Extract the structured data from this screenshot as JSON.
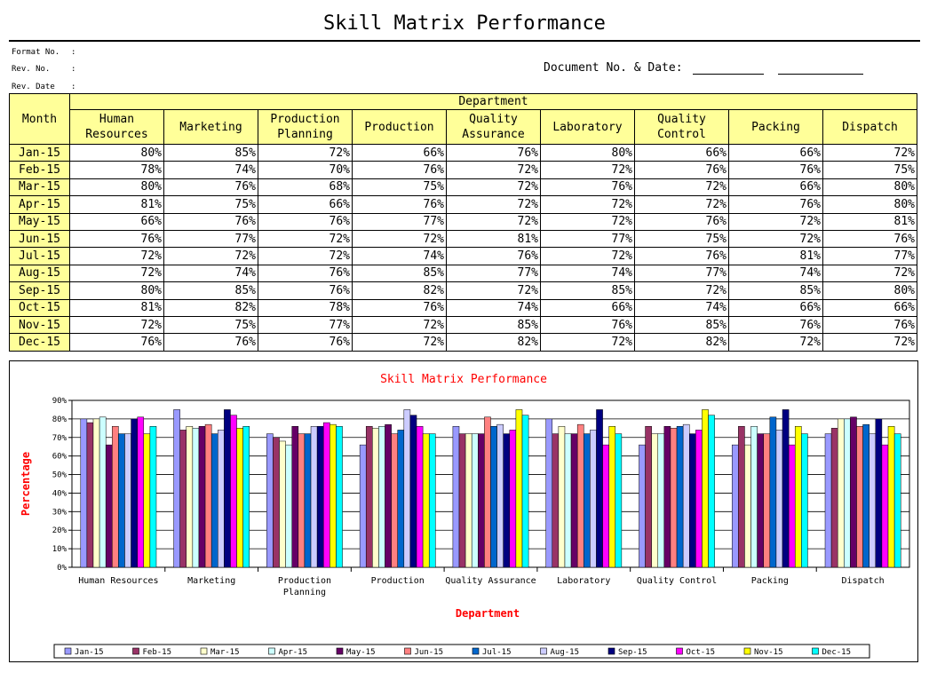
{
  "title": "Skill Matrix Performance",
  "meta": {
    "format_no": "Format No.",
    "rev_no": "Rev. No.",
    "rev_date": "Rev. Date",
    "colon": ":",
    "doc_label": "Document No. & Date:"
  },
  "table": {
    "month_header": "Month",
    "department_header": "Department",
    "columns": [
      [
        "Human",
        "Resources"
      ],
      [
        "Marketing",
        ""
      ],
      [
        "Production",
        "Planning"
      ],
      [
        "Production",
        ""
      ],
      [
        "Quality",
        "Assurance"
      ],
      [
        "Laboratory",
        ""
      ],
      [
        "Quality",
        "Control"
      ],
      [
        "Packing",
        ""
      ],
      [
        "Dispatch",
        ""
      ]
    ]
  },
  "chart_data": {
    "type": "bar",
    "title": "Skill Matrix Performance",
    "xlabel": "Department",
    "ylabel": "Percentage",
    "ylim": [
      0,
      90
    ],
    "yticks": [
      "0%",
      "10%",
      "20%",
      "30%",
      "40%",
      "50%",
      "60%",
      "70%",
      "80%",
      "90%"
    ],
    "grid": true,
    "legend_position": "bottom",
    "categories": [
      "Human Resources",
      "Marketing",
      "Production Planning",
      "Production",
      "Quality Assurance",
      "Laboratory",
      "Quality Control",
      "Packing",
      "Dispatch"
    ],
    "series": [
      {
        "name": "Jan-15",
        "color": "#9999ff",
        "values": [
          80,
          85,
          72,
          66,
          76,
          80,
          66,
          66,
          72
        ]
      },
      {
        "name": "Feb-15",
        "color": "#993366",
        "values": [
          78,
          74,
          70,
          76,
          72,
          72,
          76,
          76,
          75
        ]
      },
      {
        "name": "Mar-15",
        "color": "#ffffcc",
        "values": [
          80,
          76,
          68,
          75,
          72,
          76,
          72,
          66,
          80
        ]
      },
      {
        "name": "Apr-15",
        "color": "#ccffff",
        "values": [
          81,
          75,
          66,
          76,
          72,
          72,
          72,
          76,
          80
        ]
      },
      {
        "name": "May-15",
        "color": "#660066",
        "values": [
          66,
          76,
          76,
          77,
          72,
          72,
          76,
          72,
          81
        ]
      },
      {
        "name": "Jun-15",
        "color": "#ff8080",
        "values": [
          76,
          77,
          72,
          72,
          81,
          77,
          75,
          72,
          76
        ]
      },
      {
        "name": "Jul-15",
        "color": "#0066cc",
        "values": [
          72,
          72,
          72,
          74,
          76,
          72,
          76,
          81,
          77
        ]
      },
      {
        "name": "Aug-15",
        "color": "#ccccff",
        "values": [
          72,
          74,
          76,
          85,
          77,
          74,
          77,
          74,
          72
        ]
      },
      {
        "name": "Sep-15",
        "color": "#000080",
        "values": [
          80,
          85,
          76,
          82,
          72,
          85,
          72,
          85,
          80
        ]
      },
      {
        "name": "Oct-15",
        "color": "#ff00ff",
        "values": [
          81,
          82,
          78,
          76,
          74,
          66,
          74,
          66,
          66
        ]
      },
      {
        "name": "Nov-15",
        "color": "#ffff00",
        "values": [
          72,
          75,
          77,
          72,
          85,
          76,
          85,
          76,
          76
        ]
      },
      {
        "name": "Dec-15",
        "color": "#00ffff",
        "values": [
          76,
          76,
          76,
          72,
          82,
          72,
          82,
          72,
          72
        ]
      }
    ],
    "x_tick_labels": [
      [
        "Human Resources"
      ],
      [
        "Marketing"
      ],
      [
        "Production",
        "Planning"
      ],
      [
        "Production"
      ],
      [
        "Quality Assurance"
      ],
      [
        "Laboratory"
      ],
      [
        "Quality Control"
      ],
      [
        "Packing"
      ],
      [
        "Dispatch"
      ]
    ]
  }
}
